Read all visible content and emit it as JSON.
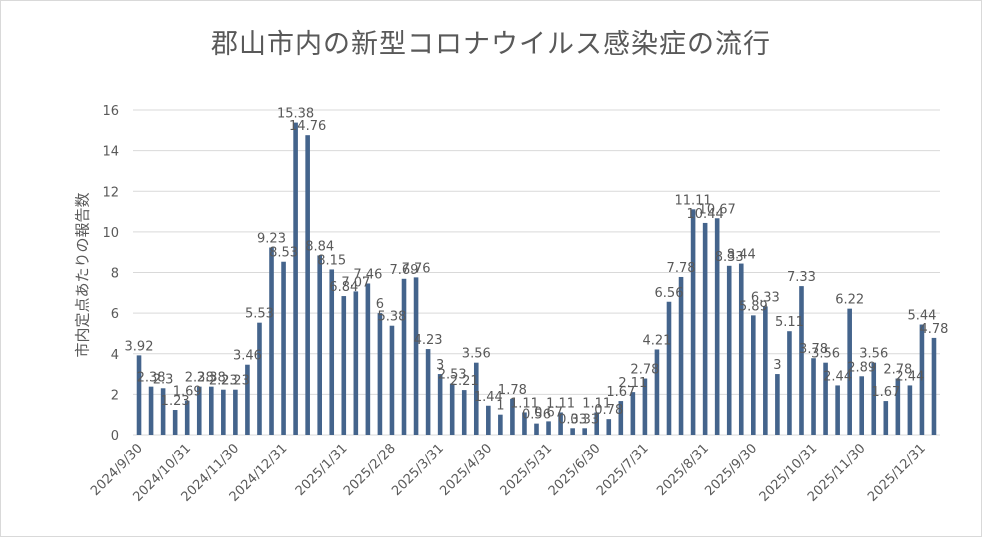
{
  "chart_data": {
    "type": "bar",
    "title": "郡山市内の新型コロナウイルス感染症の流行",
    "xlabel": "",
    "ylabel": "市内定点あたりの報告数",
    "ylim": [
      0,
      16
    ],
    "yticks": [
      0,
      2,
      4,
      6,
      8,
      10,
      12,
      14,
      16
    ],
    "gridlines": true,
    "bar_color": "#44648c",
    "x_tick_labels": [
      "2024/9/30",
      "2024/10/31",
      "2024/11/30",
      "2024/12/31",
      "2025/1/31",
      "2025/2/28",
      "2025/3/31",
      "2025/4/30",
      "2025/5/31",
      "2025/6/30",
      "2025/7/31",
      "2025/8/31",
      "2025/9/30",
      "2025/10/31",
      "2025/11/30",
      "2025/12/31"
    ],
    "x_tick_positions": [
      0,
      4,
      8,
      12,
      17,
      21,
      25,
      29,
      34,
      38,
      42,
      47,
      51,
      56,
      60,
      65
    ],
    "values": [
      3.92,
      2.38,
      2.3,
      1.23,
      1.69,
      2.38,
      2.38,
      2.23,
      2.23,
      3.46,
      5.53,
      9.23,
      8.53,
      15.38,
      14.76,
      8.84,
      8.15,
      6.84,
      7.07,
      7.46,
      6,
      5.38,
      7.69,
      7.76,
      4.23,
      3,
      2.53,
      2.21,
      3.56,
      1.44,
      1,
      1.78,
      1.11,
      0.56,
      0.67,
      1.11,
      0.33,
      0.33,
      1.11,
      0.78,
      1.67,
      2.11,
      2.78,
      4.21,
      6.56,
      7.78,
      11.11,
      10.44,
      10.67,
      8.33,
      8.44,
      5.89,
      6.33,
      3,
      5.11,
      7.33,
      3.78,
      3.56,
      2.44,
      6.22,
      2.89,
      3.56,
      1.67,
      2.78,
      2.44,
      5.44,
      4.78
    ],
    "data_labels": [
      "3.92",
      "2.38",
      "2.3",
      "1.23",
      "1.69",
      "2.38",
      "2.38",
      "2.23",
      "2.23",
      "3.46",
      "5.53",
      "9.23",
      "8.53",
      "15.38",
      "14.76",
      "8.84",
      "8.15",
      "6.84",
      "7.07",
      "7.46",
      "6",
      "5.38",
      "7.69",
      "7.76",
      "4.23",
      "3",
      "2.53",
      "2.21",
      "3.56",
      "1.44",
      "1",
      "1.78",
      "1.11",
      "0.56",
      "0.67",
      "1.11",
      "0.33",
      "0.33",
      "1.11",
      "0.78",
      "1.67",
      "2.11",
      "2.78",
      "4.21",
      "6.56",
      "7.78",
      "11.11",
      "10.44",
      "10.67",
      "8.33",
      "8.44",
      "5.89",
      "6.33",
      "3",
      "5.11",
      "7.33",
      "3.78",
      "3.56",
      "2.44",
      "6.22",
      "2.89",
      "3.56",
      "1.67",
      "2.78",
      "2.44",
      "5.44",
      "4.78"
    ]
  }
}
